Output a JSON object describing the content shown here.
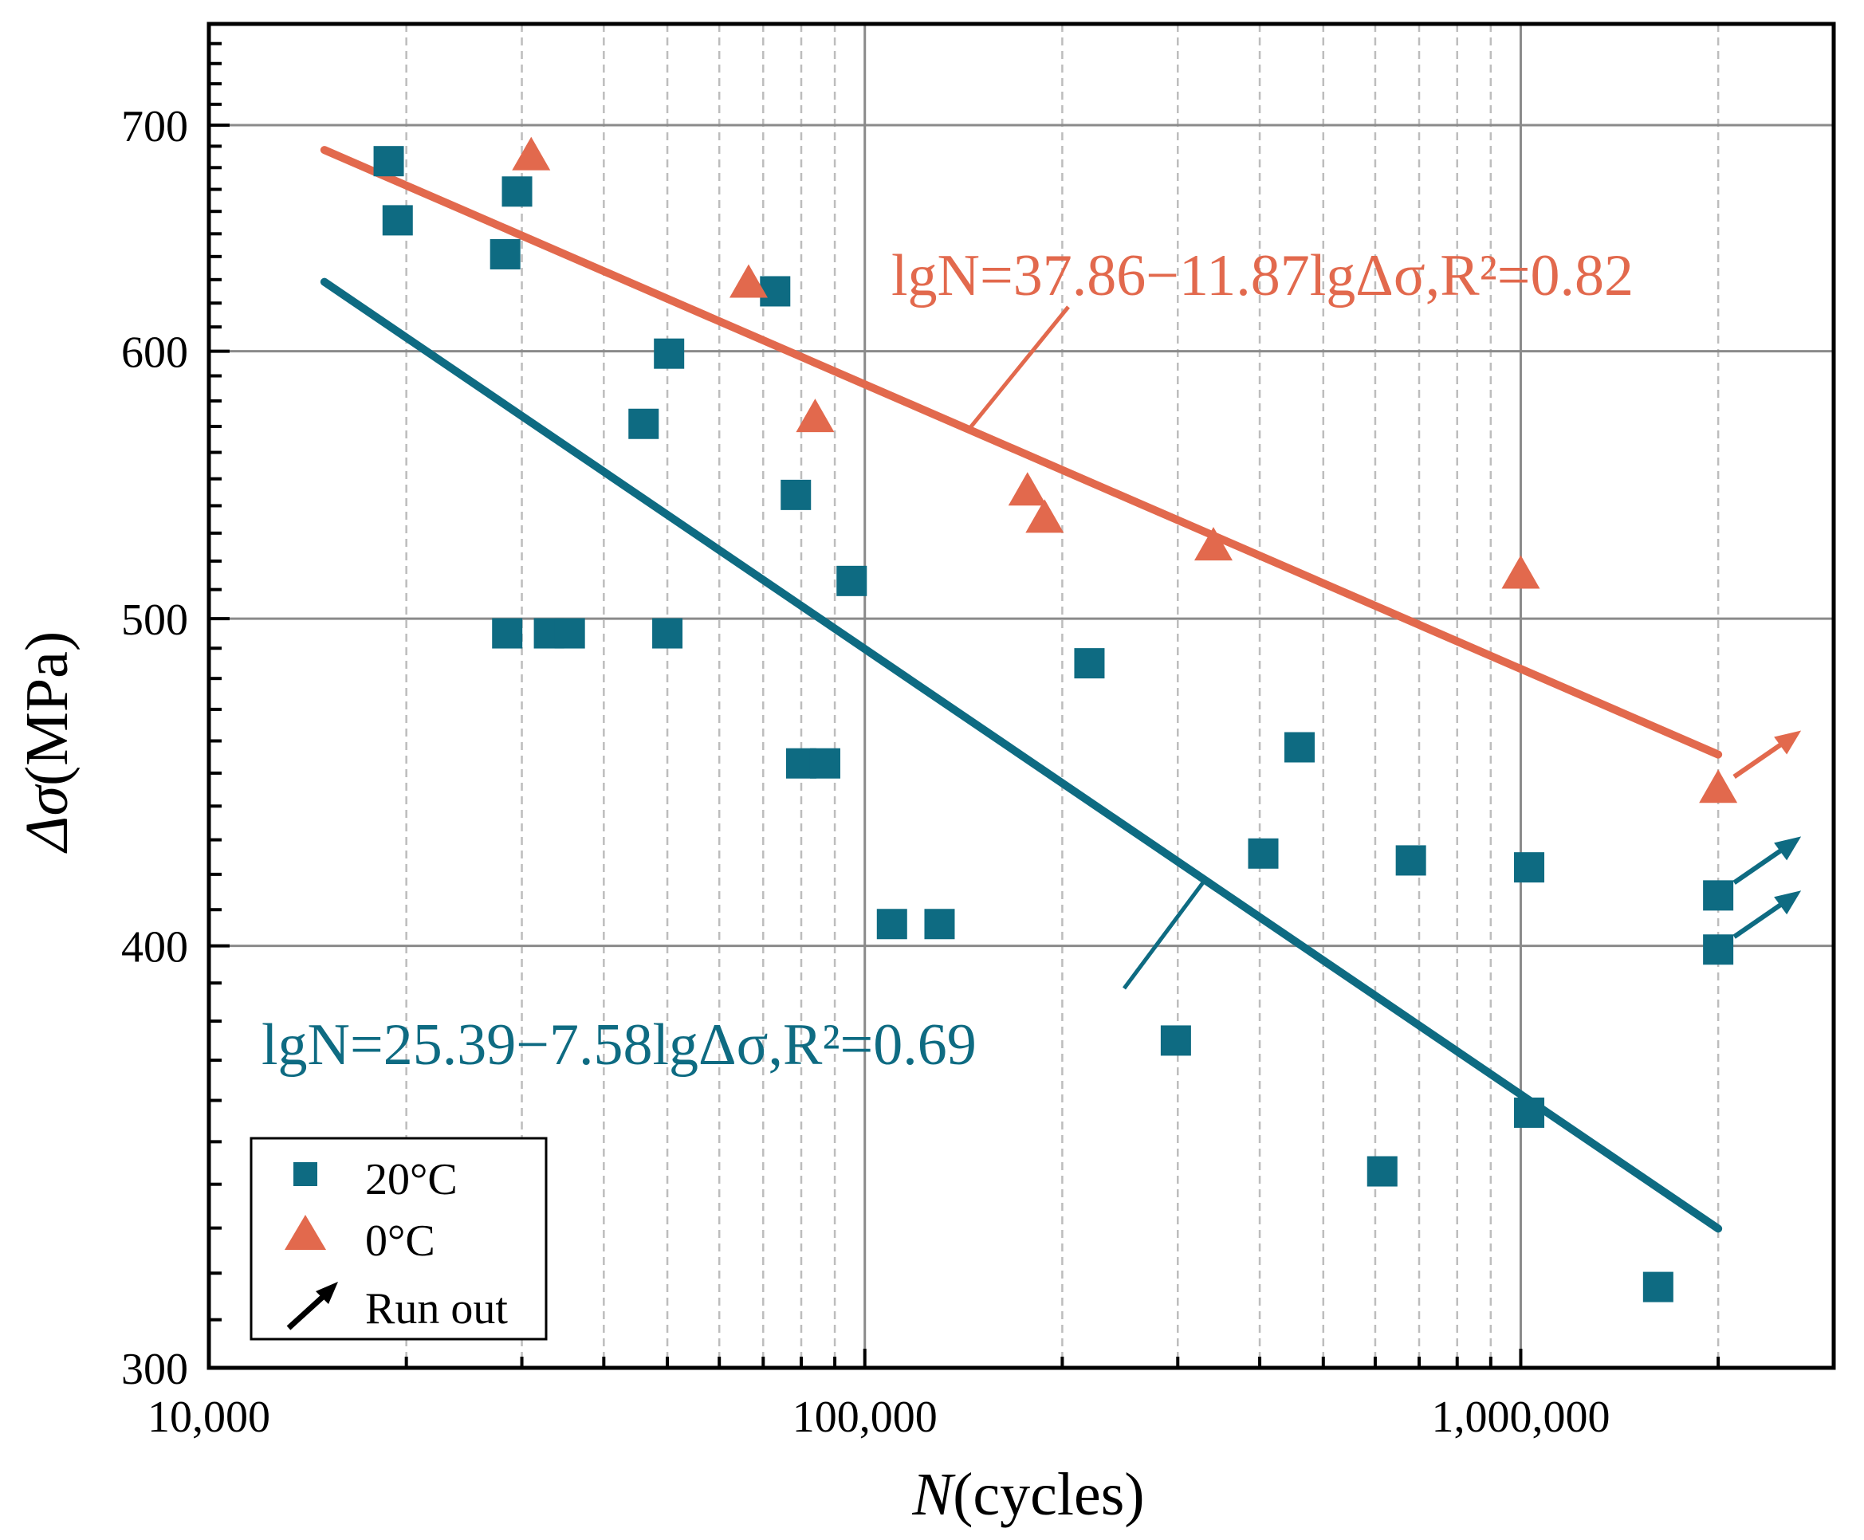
{
  "chart_data": {
    "type": "scatter",
    "xlabel_italic": "N",
    "xlabel_rest": "(cycles)",
    "ylabel_italic": "Δσ",
    "ylabel_rest": "(MPa)",
    "x_scale": "log",
    "y_scale": "log",
    "xlim": [
      10000,
      3000000
    ],
    "ylim": [
      300,
      750
    ],
    "x_ticks": [
      {
        "value": 10000,
        "label": "10,000"
      },
      {
        "value": 100000,
        "label": "100,000"
      },
      {
        "value": 1000000,
        "label": "1,000,000"
      }
    ],
    "y_ticks": [
      {
        "value": 300,
        "label": "300"
      },
      {
        "value": 400,
        "label": "400"
      },
      {
        "value": 500,
        "label": "500"
      },
      {
        "value": 600,
        "label": "600"
      },
      {
        "value": 700,
        "label": "700"
      }
    ],
    "grid": true,
    "colors": {
      "teal": "#0e6b82",
      "orange": "#e2694d",
      "black": "#000000"
    },
    "series": [
      {
        "name": "20°C",
        "marker": "square",
        "color": "#0e6b82",
        "points": [
          [
            18800,
            683
          ],
          [
            19400,
            656
          ],
          [
            28300,
            641
          ],
          [
            29500,
            669
          ],
          [
            46000,
            571
          ],
          [
            50300,
            599
          ],
          [
            28500,
            495
          ],
          [
            33000,
            495
          ],
          [
            35500,
            495
          ],
          [
            50000,
            495
          ],
          [
            73000,
            625
          ],
          [
            78500,
            544
          ],
          [
            95500,
            513
          ],
          [
            80000,
            453
          ],
          [
            87000,
            453
          ],
          [
            110000,
            406
          ],
          [
            130000,
            406
          ],
          [
            220000,
            485
          ],
          [
            298000,
            375
          ],
          [
            405000,
            426
          ],
          [
            460000,
            458
          ],
          [
            680000,
            424
          ],
          [
            615000,
            343
          ],
          [
            1030000,
            422
          ],
          [
            1030000,
            357
          ],
          [
            1620000,
            317
          ],
          [
            2000000,
            414
          ],
          [
            2000000,
            399
          ]
        ]
      },
      {
        "name": "0°C",
        "marker": "triangle",
        "color": "#e2694d",
        "points": [
          [
            31000,
            685
          ],
          [
            66500,
            628
          ],
          [
            84000,
            573
          ],
          [
            177000,
            545
          ],
          [
            188000,
            535
          ],
          [
            340000,
            525
          ],
          [
            1000000,
            515
          ],
          [
            2000000,
            445
          ]
        ]
      }
    ],
    "fits": [
      {
        "name": "20°C",
        "color": "#0e6b82",
        "x_range": [
          15000,
          2000000
        ],
        "equation": "lgN=25.39−7.58lgΔσ,R²=0.69",
        "a": 25.39,
        "b": 7.58
      },
      {
        "name": "0°C",
        "color": "#e2694d",
        "x_range": [
          15000,
          2000000
        ],
        "equation": "lgN=37.86−11.87lgΔσ,R²=0.82",
        "a": 37.86,
        "b": 11.87
      }
    ],
    "run_outs": [
      {
        "x": 2000000,
        "y": 445,
        "color": "#e2694d"
      },
      {
        "x": 2000000,
        "y": 414,
        "color": "#0e6b82"
      },
      {
        "x": 2000000,
        "y": 399,
        "color": "#0e6b82"
      }
    ],
    "legend": {
      "position": "bottom-left",
      "entries": [
        {
          "label": "20°C",
          "marker": "square",
          "color": "#0e6b82"
        },
        {
          "label": "0°C",
          "marker": "triangle",
          "color": "#e2694d"
        },
        {
          "label": "Run out",
          "marker": "arrow",
          "color": "#000000"
        }
      ]
    }
  }
}
